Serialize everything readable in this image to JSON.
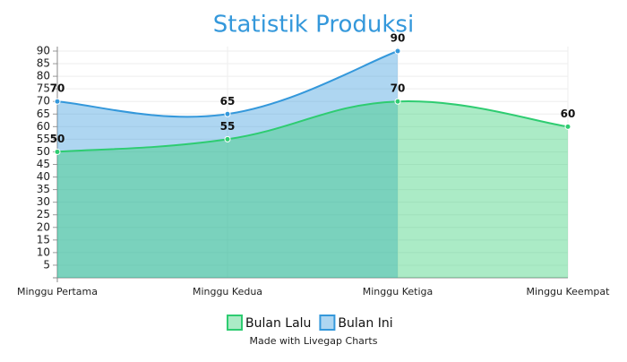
{
  "chart_data": {
    "type": "area",
    "title": "Statistik Produksi",
    "categories": [
      "Minggu Pertama",
      "Minggu Kedua",
      "Minggu Ketiga",
      "Minggu Keempat"
    ],
    "series": [
      {
        "name": "Bulan Lalu",
        "color": "#2ecc71",
        "values": [
          50,
          55,
          70,
          60
        ]
      },
      {
        "name": "Bulan Ini",
        "color": "#3498db",
        "values": [
          70,
          65,
          90,
          null
        ]
      }
    ],
    "ylim": [
      0,
      90
    ],
    "yticks": [
      5,
      10,
      15,
      20,
      25,
      30,
      35,
      40,
      45,
      50,
      55,
      60,
      65,
      70,
      75,
      80,
      85,
      90
    ],
    "grid": true,
    "legend": "bottom",
    "credit": "Made with Livegap Charts"
  }
}
